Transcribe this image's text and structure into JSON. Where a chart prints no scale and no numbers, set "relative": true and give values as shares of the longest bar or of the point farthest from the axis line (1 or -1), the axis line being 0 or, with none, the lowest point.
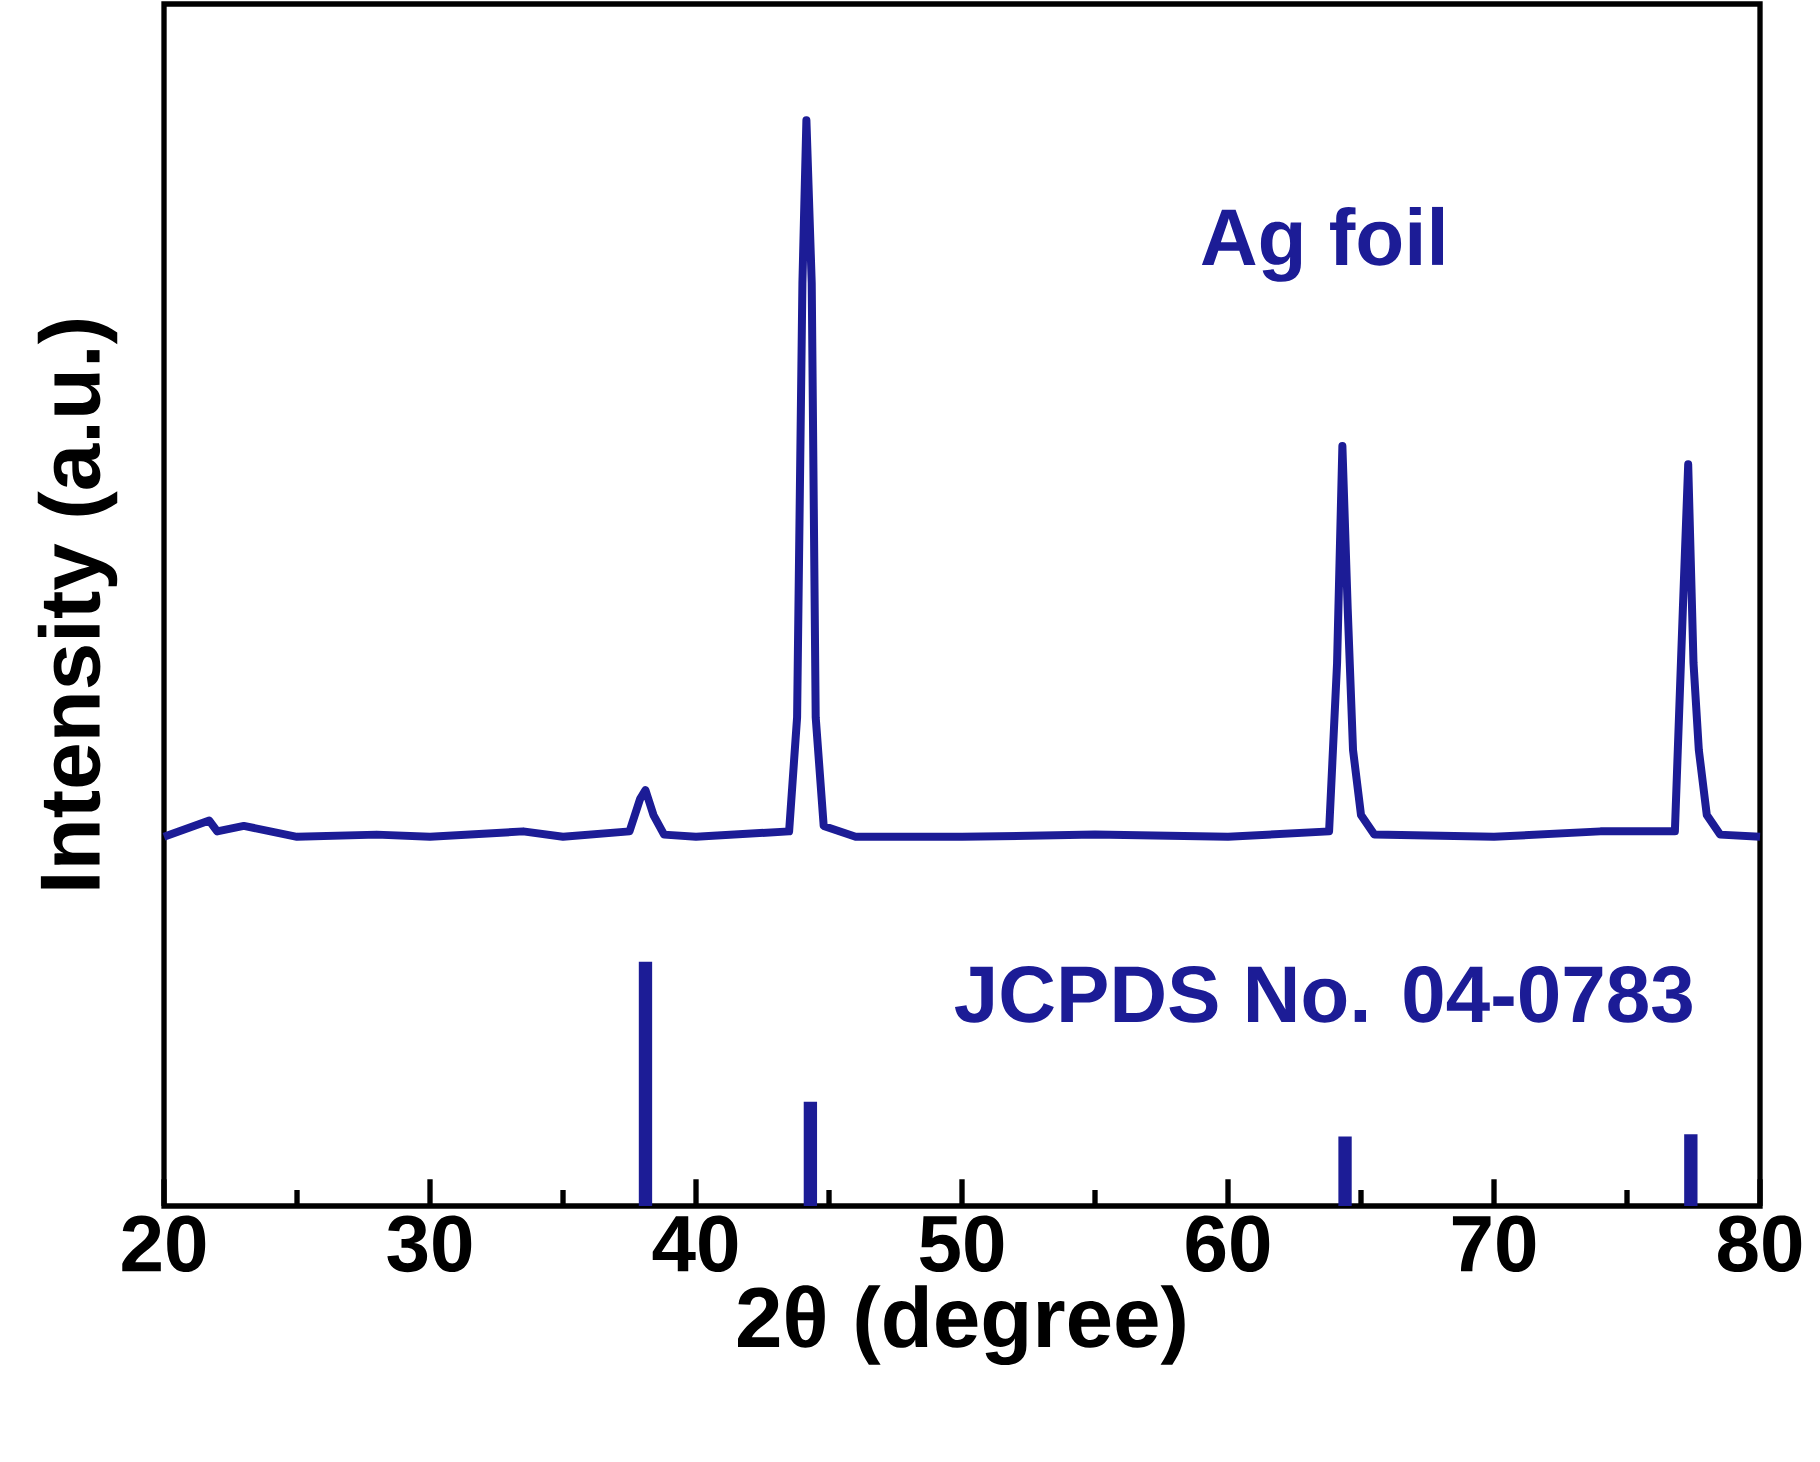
{
  "chart_data": {
    "type": "line",
    "relative": true,
    "xlabel": "2θ (degree)",
    "ylabel": "Intensity (a.u.)",
    "xlim": [
      20,
      80
    ],
    "xticks": [
      20,
      30,
      40,
      50,
      60,
      70,
      80
    ],
    "line_style": "solid",
    "series": [
      {
        "name": "Ag foil",
        "color": "#1c1c96",
        "x": [
          20,
          21.7,
          22,
          23,
          25,
          28,
          30,
          33.5,
          35,
          37.5,
          37.9,
          38.1,
          38.4,
          38.8,
          40,
          43.5,
          43.8,
          44.0,
          44.15,
          44.35,
          44.5,
          44.8,
          46,
          50,
          55,
          60,
          63.8,
          64.1,
          64.3,
          64.5,
          64.7,
          65,
          65.5,
          70,
          74,
          76.8,
          77.1,
          77.3,
          77.5,
          77.7,
          78,
          78.5,
          80
        ],
        "values": [
          0.34,
          0.355,
          0.345,
          0.35,
          0.34,
          0.342,
          0.34,
          0.345,
          0.34,
          0.345,
          0.375,
          0.383,
          0.36,
          0.342,
          0.34,
          0.345,
          0.45,
          0.85,
          1.0,
          0.85,
          0.45,
          0.35,
          0.34,
          0.34,
          0.342,
          0.34,
          0.345,
          0.5,
          0.7,
          0.55,
          0.42,
          0.36,
          0.342,
          0.34,
          0.345,
          0.345,
          0.55,
          0.683,
          0.5,
          0.42,
          0.36,
          0.342,
          0.34
        ]
      },
      {
        "name": "JCPDS No. 04-0783",
        "type": "bar",
        "color": "#1c1c96",
        "x": [
          38.1,
          44.3,
          64.4,
          77.4
        ],
        "values": [
          0.225,
          0.096,
          0.064,
          0.066
        ]
      }
    ]
  }
}
